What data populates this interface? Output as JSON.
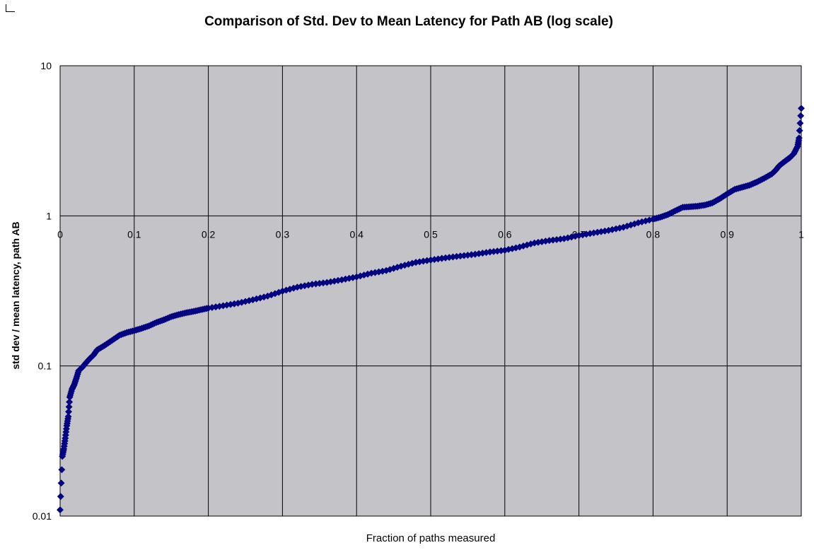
{
  "chart_data": {
    "type": "scatter",
    "title": "Comparison of Std. Dev to Mean Latency for Path AB (log scale)",
    "xlabel": "Fraction of paths measured",
    "ylabel": "std dev / mean latency, path AB",
    "x_ticks": [
      "0",
      "0.1",
      "0.2",
      "0.3",
      "0.4",
      "0.5",
      "0.6",
      "0.7",
      "0.8",
      "0.9",
      "1"
    ],
    "y_ticks": [
      "0.01",
      "0.1",
      "1",
      "10"
    ],
    "xlim": [
      0,
      1
    ],
    "ylim": [
      0.01,
      10
    ],
    "y_scale": "log",
    "grid": true,
    "legend": "none",
    "colors": {
      "marker": "#000080",
      "plot_background": "#c4c3c7",
      "grid": "#000000"
    },
    "series": [
      {
        "x": [
          0.0,
          0.003,
          0.005,
          0.007,
          0.009,
          0.011,
          0.013,
          0.016,
          0.019,
          0.022,
          0.025,
          0.03,
          0.035,
          0.04,
          0.045,
          0.05,
          0.06,
          0.07,
          0.08,
          0.09,
          0.1,
          0.11,
          0.12,
          0.13,
          0.14,
          0.15,
          0.16,
          0.17,
          0.18,
          0.19,
          0.2,
          0.22,
          0.24,
          0.26,
          0.28,
          0.3,
          0.32,
          0.34,
          0.36,
          0.38,
          0.4,
          0.42,
          0.44,
          0.46,
          0.48,
          0.5,
          0.52,
          0.54,
          0.56,
          0.58,
          0.6,
          0.62,
          0.64,
          0.66,
          0.68,
          0.7,
          0.72,
          0.74,
          0.76,
          0.78,
          0.8,
          0.81,
          0.82,
          0.83,
          0.84,
          0.85,
          0.86,
          0.87,
          0.88,
          0.89,
          0.9,
          0.91,
          0.92,
          0.93,
          0.94,
          0.95,
          0.96,
          0.965,
          0.97,
          0.975,
          0.98,
          0.985,
          0.99,
          0.995,
          0.997,
          1.0
        ],
        "y": [
          0.011,
          0.025,
          0.028,
          0.033,
          0.04,
          0.046,
          0.062,
          0.07,
          0.075,
          0.083,
          0.093,
          0.098,
          0.105,
          0.112,
          0.118,
          0.128,
          0.137,
          0.148,
          0.16,
          0.167,
          0.172,
          0.178,
          0.185,
          0.195,
          0.203,
          0.213,
          0.22,
          0.226,
          0.231,
          0.237,
          0.243,
          0.252,
          0.262,
          0.276,
          0.292,
          0.315,
          0.335,
          0.35,
          0.36,
          0.375,
          0.392,
          0.415,
          0.432,
          0.462,
          0.49,
          0.508,
          0.525,
          0.54,
          0.555,
          0.575,
          0.59,
          0.62,
          0.66,
          0.685,
          0.705,
          0.74,
          0.77,
          0.8,
          0.84,
          0.9,
          0.95,
          0.98,
          1.02,
          1.08,
          1.14,
          1.15,
          1.16,
          1.18,
          1.22,
          1.3,
          1.4,
          1.5,
          1.55,
          1.6,
          1.68,
          1.78,
          1.9,
          2.0,
          2.15,
          2.25,
          2.35,
          2.45,
          2.6,
          2.9,
          3.3,
          5.2
        ]
      }
    ]
  }
}
